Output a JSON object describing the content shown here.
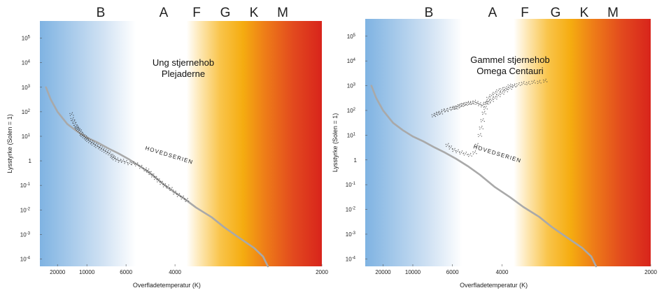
{
  "chart_data": [
    {
      "type": "scatter",
      "title": [
        "Ung stjernehob",
        "Plejaderne"
      ],
      "xlabel": "Overfladetemperatur (K)",
      "ylabel": "Lysstyrke (Solen = 1)",
      "x_ticks": [
        20000,
        10000,
        6000,
        4000,
        2000
      ],
      "y_ticks": [
        "10^-4",
        "10^-3",
        "10^-2",
        "10^-1",
        "1",
        "10^1",
        "10^2",
        "10^3",
        "10^4",
        "10^5"
      ],
      "x_scale": "reciprocal",
      "x_range": [
        50000,
        2000
      ],
      "y_scale": "log",
      "y_range_log10": [
        -4.3,
        5.7
      ],
      "spectral_classes": [
        "B",
        "A",
        "F",
        "G",
        "K",
        "M"
      ],
      "main_sequence_label": "HOVEDSERIEN",
      "main_sequence": {
        "T": [
          33000,
          26000,
          20000,
          15000,
          12000,
          10000,
          8500,
          7300,
          6500,
          5800,
          5200,
          4700,
          4200,
          3800,
          3500,
          3200,
          3000,
          2800,
          2600,
          2500,
          2450
        ],
        "logL": [
          3.0,
          2.5,
          2.0,
          1.5,
          1.2,
          0.95,
          0.75,
          0.5,
          0.3,
          0.05,
          -0.25,
          -0.6,
          -1.1,
          -1.5,
          -1.9,
          -2.3,
          -2.7,
          -3.1,
          -3.55,
          -3.9,
          -4.3
        ]
      },
      "points": {
        "T": [
          13500,
          13200,
          12800,
          12500,
          12200,
          12000,
          11800,
          11500,
          11200,
          11000,
          10800,
          10500,
          10200,
          10000,
          9800,
          9500,
          9200,
          9000,
          8700,
          8500,
          8200,
          8000,
          7800,
          7600,
          7400,
          7200,
          7000,
          6900,
          6800,
          6600,
          6400,
          6200,
          6000,
          5800,
          5600,
          5400,
          5200,
          5000,
          4900,
          4800,
          4700,
          4600,
          4500,
          4400,
          4300,
          4200,
          4100,
          4000,
          3900,
          3800,
          3700
        ],
        "logL": [
          1.9,
          1.7,
          1.6,
          1.5,
          1.4,
          1.35,
          1.3,
          1.25,
          1.2,
          1.1,
          1.05,
          1.0,
          0.95,
          0.9,
          0.85,
          0.8,
          0.75,
          0.7,
          0.65,
          0.6,
          0.55,
          0.5,
          0.45,
          0.4,
          0.35,
          0.3,
          0.2,
          0.15,
          0.1,
          0.05,
          0.0,
          0.0,
          -0.05,
          -0.1,
          -0.1,
          -0.15,
          -0.25,
          -0.35,
          -0.4,
          -0.5,
          -0.6,
          -0.7,
          -0.8,
          -0.9,
          -1.0,
          -1.05,
          -1.15,
          -1.3,
          -1.4,
          -1.5,
          -1.6
        ]
      }
    },
    {
      "type": "scatter",
      "title": [
        "Gammel stjernehob",
        "Omega Centauri"
      ],
      "xlabel": "Overfladetemperatur (K)",
      "ylabel": "Lysstyrke (Solen = 1)",
      "x_ticks": [
        20000,
        10000,
        6000,
        4000,
        2000
      ],
      "y_ticks": [
        "10^-4",
        "10^-3",
        "10^-2",
        "10^-1",
        "1",
        "10^1",
        "10^2",
        "10^3",
        "10^4",
        "10^5"
      ],
      "x_scale": "reciprocal",
      "x_range": [
        50000,
        2000
      ],
      "y_scale": "log",
      "y_range_log10": [
        -4.3,
        5.7
      ],
      "spectral_classes": [
        "B",
        "A",
        "F",
        "G",
        "K",
        "M"
      ],
      "main_sequence_label": "HOVEDSERIEN",
      "main_sequence": {
        "T": [
          33000,
          26000,
          20000,
          15000,
          12000,
          10000,
          8500,
          7300,
          6500,
          5800,
          5200,
          4700,
          4200,
          3800,
          3500,
          3200,
          3000,
          2800,
          2600,
          2500,
          2450
        ],
        "logL": [
          3.0,
          2.5,
          2.0,
          1.5,
          1.2,
          0.95,
          0.75,
          0.5,
          0.3,
          0.05,
          -0.25,
          -0.6,
          -1.1,
          -1.5,
          -1.9,
          -2.3,
          -2.7,
          -3.1,
          -3.55,
          -3.9,
          -4.3
        ]
      },
      "points": {
        "T": [
          7400,
          7200,
          7000,
          6800,
          6600,
          6400,
          6200,
          6000,
          5900,
          5800,
          5700,
          5600,
          5500,
          5400,
          5300,
          5200,
          5100,
          5000,
          4900,
          4800,
          4700,
          4600,
          4500,
          4400,
          4300,
          4200,
          4100,
          4000,
          3900,
          3800,
          3700,
          6300,
          6100,
          5900,
          5700,
          5500,
          5300,
          5100,
          4900,
          4800,
          4700,
          4650,
          4600,
          4550,
          4500,
          4450,
          4400,
          4300,
          4200,
          4100,
          4000,
          3900,
          3800,
          3700,
          3600,
          3500,
          3400,
          3300,
          3200,
          3100
        ],
        "logL": [
          1.8,
          1.85,
          1.9,
          1.9,
          2.0,
          2.0,
          2.05,
          2.1,
          2.1,
          2.1,
          2.15,
          2.2,
          2.2,
          2.25,
          2.25,
          2.3,
          2.3,
          2.3,
          2.35,
          2.3,
          2.25,
          2.2,
          2.3,
          2.35,
          2.4,
          2.5,
          2.6,
          2.7,
          2.8,
          2.9,
          3.0,
          0.6,
          0.5,
          0.4,
          0.35,
          0.3,
          0.25,
          0.2,
          0.3,
          0.6,
          1.0,
          1.3,
          1.6,
          1.9,
          2.1,
          2.3,
          2.5,
          2.6,
          2.7,
          2.8,
          2.85,
          2.9,
          3.0,
          3.0,
          3.05,
          3.1,
          3.1,
          3.15,
          3.15,
          3.2
        ]
      }
    }
  ]
}
